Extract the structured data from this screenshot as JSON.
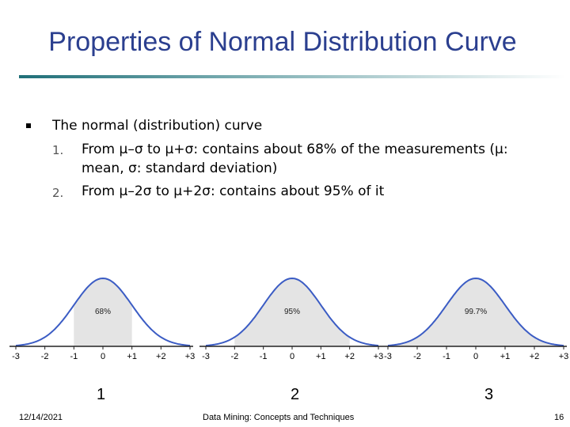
{
  "slide": {
    "title": "Properties of Normal Distribution Curve",
    "body": {
      "intro": "The normal (distribution) curve",
      "items": [
        {
          "number": "1.",
          "text_line1": "From μ–σ to μ+σ: contains about 68% of the measurements  (μ:",
          "text_line2": "mean, σ: standard deviation)"
        },
        {
          "number": "2.",
          "text_line1": "From μ–2σ to μ+2σ: contains about 95% of it"
        }
      ]
    }
  },
  "chart_data": [
    {
      "type": "area",
      "percent_label": "68%",
      "shaded_range": [
        -1,
        1
      ],
      "ticks": [
        "-3",
        "-2",
        "-1",
        "0",
        "+1",
        "+2",
        "+3"
      ],
      "xlim": [
        -3,
        3
      ],
      "figure_label": "1"
    },
    {
      "type": "area",
      "percent_label": "95%",
      "shaded_range": [
        -2,
        2
      ],
      "ticks": [
        "-3",
        "-2",
        "-1",
        "0",
        "+1",
        "+2",
        "+3"
      ],
      "xlim": [
        -3,
        3
      ],
      "figure_label": "2"
    },
    {
      "type": "area",
      "percent_label": "99.7%",
      "shaded_range": [
        -3,
        3
      ],
      "ticks": [
        "-3",
        "-2",
        "-1",
        "0",
        "+1",
        "+2",
        "+3"
      ],
      "xlim": [
        -3,
        3
      ],
      "figure_label": "3"
    }
  ],
  "footer": {
    "date": "12/14/2021",
    "center": "Data Mining: Concepts and Techniques",
    "page": "16"
  }
}
